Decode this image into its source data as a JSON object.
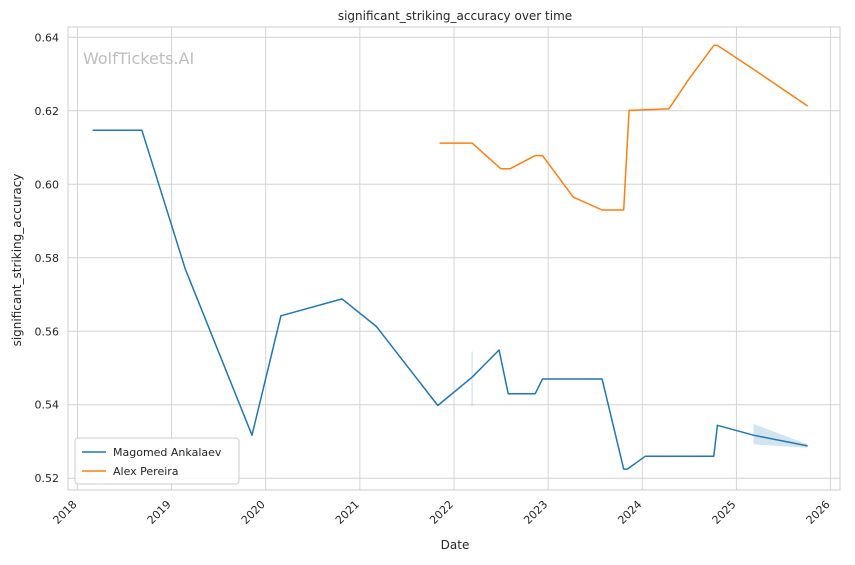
{
  "chart_data": {
    "type": "line",
    "title": "significant_striking_accuracy over time",
    "xlabel": "Date",
    "ylabel": "significant_striking_accuracy",
    "watermark": "WolfTickets.AI",
    "x_scale": "date (years)",
    "xlim": [
      2017.9,
      2026.1
    ],
    "ylim": [
      0.5168,
      0.6428
    ],
    "x_ticks": [
      "2018",
      "2019",
      "2020",
      "2021",
      "2022",
      "2023",
      "2024",
      "2025",
      "2026"
    ],
    "y_ticks": [
      "0.52",
      "0.54",
      "0.56",
      "0.58",
      "0.60",
      "0.62",
      "0.64"
    ],
    "grid": true,
    "legend_position": "lower-left",
    "series": [
      {
        "name": "Magomed Ankalaev",
        "color": "#1f77b4",
        "points": [
          [
            "2018-03-01",
            0.6147
          ],
          [
            "2018-09-08",
            0.6147
          ],
          [
            "2019-02-23",
            0.577
          ],
          [
            "2019-11-09",
            0.5317
          ],
          [
            "2020-02-29",
            0.5642
          ],
          [
            "2020-10-24",
            0.5688
          ],
          [
            "2021-03-06",
            0.5613
          ],
          [
            "2021-10-30",
            0.5398
          ],
          [
            "2022-03-12",
            0.5475
          ],
          [
            "2022-06-25",
            0.5549
          ],
          [
            "2022-07-30",
            0.543
          ],
          [
            "2022-11-12",
            0.543
          ],
          [
            "2022-12-10",
            0.547
          ],
          [
            "2023-07-29",
            0.547
          ],
          [
            "2023-10-21",
            0.5225
          ],
          [
            "2023-11-04",
            0.5225
          ],
          [
            "2024-01-13",
            0.526
          ],
          [
            "2024-07-20",
            0.526
          ],
          [
            "2024-10-05",
            0.526
          ],
          [
            "2024-10-19",
            0.5344
          ],
          [
            "2025-03-08",
            0.5317
          ],
          [
            "2025-10-04",
            0.5288
          ]
        ],
        "band": [
          [
            "2025-03-08",
            0.5292,
            0.5348
          ],
          [
            "2025-10-04",
            0.5283,
            0.5292
          ]
        ]
      },
      {
        "name": "Alex Pereira",
        "color": "#ff7f0e",
        "points": [
          [
            "2021-11-06",
            0.6112
          ],
          [
            "2022-03-12",
            0.6112
          ],
          [
            "2022-07-02",
            0.6042
          ],
          [
            "2022-08-06",
            0.6042
          ],
          [
            "2022-11-12",
            0.6078
          ],
          [
            "2022-12-10",
            0.6078
          ],
          [
            "2023-04-08",
            0.5965
          ],
          [
            "2023-07-29",
            0.593
          ],
          [
            "2023-10-21",
            0.593
          ],
          [
            "2023-11-11",
            0.6201
          ],
          [
            "2024-04-13",
            0.6205
          ],
          [
            "2024-07-01",
            0.6287
          ],
          [
            "2024-10-05",
            0.6378
          ],
          [
            "2024-10-19",
            0.6378
          ],
          [
            "2025-03-08",
            0.6313
          ],
          [
            "2025-10-04",
            0.6213
          ]
        ]
      }
    ]
  }
}
